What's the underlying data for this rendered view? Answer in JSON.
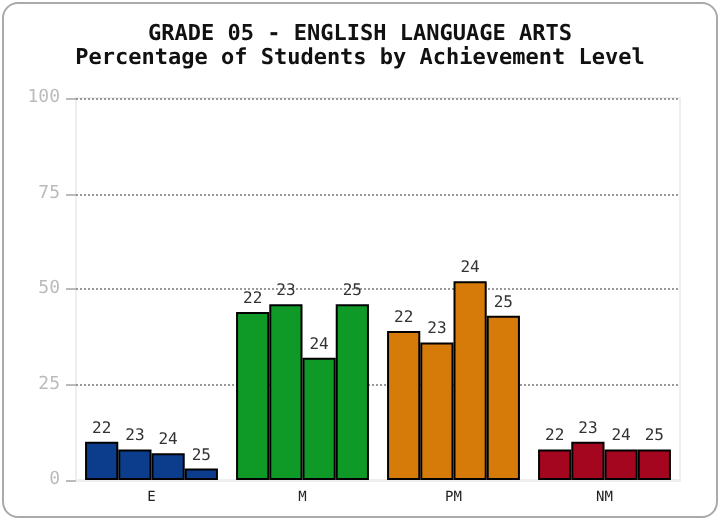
{
  "chart_data": {
    "type": "bar",
    "title": "GRADE 05 - ENGLISH LANGUAGE ARTS",
    "subtitle": "Percentage of Students by Achievement Level",
    "categories": [
      "E",
      "M",
      "PM",
      "NM"
    ],
    "series": [
      {
        "name": "22",
        "colors": [
          "#0b3d8c",
          "#0f9a28",
          "#d67a0a",
          "#a4061f"
        ],
        "values": [
          10,
          44,
          39,
          8
        ]
      },
      {
        "name": "23",
        "colors": [
          "#0b3d8c",
          "#0f9a28",
          "#d67a0a",
          "#a4061f"
        ],
        "values": [
          8,
          46,
          36,
          10
        ]
      },
      {
        "name": "24",
        "colors": [
          "#0b3d8c",
          "#0f9a28",
          "#d67a0a",
          "#a4061f"
        ],
        "values": [
          7,
          32,
          52,
          8
        ]
      },
      {
        "name": "25",
        "colors": [
          "#0b3d8c",
          "#0f9a28",
          "#d67a0a",
          "#a4061f"
        ],
        "values": [
          3,
          46,
          43,
          8
        ]
      }
    ],
    "ylim": [
      0,
      100
    ],
    "yticks": [
      0,
      25,
      50,
      75,
      100
    ],
    "grid": "y",
    "legend": false
  }
}
